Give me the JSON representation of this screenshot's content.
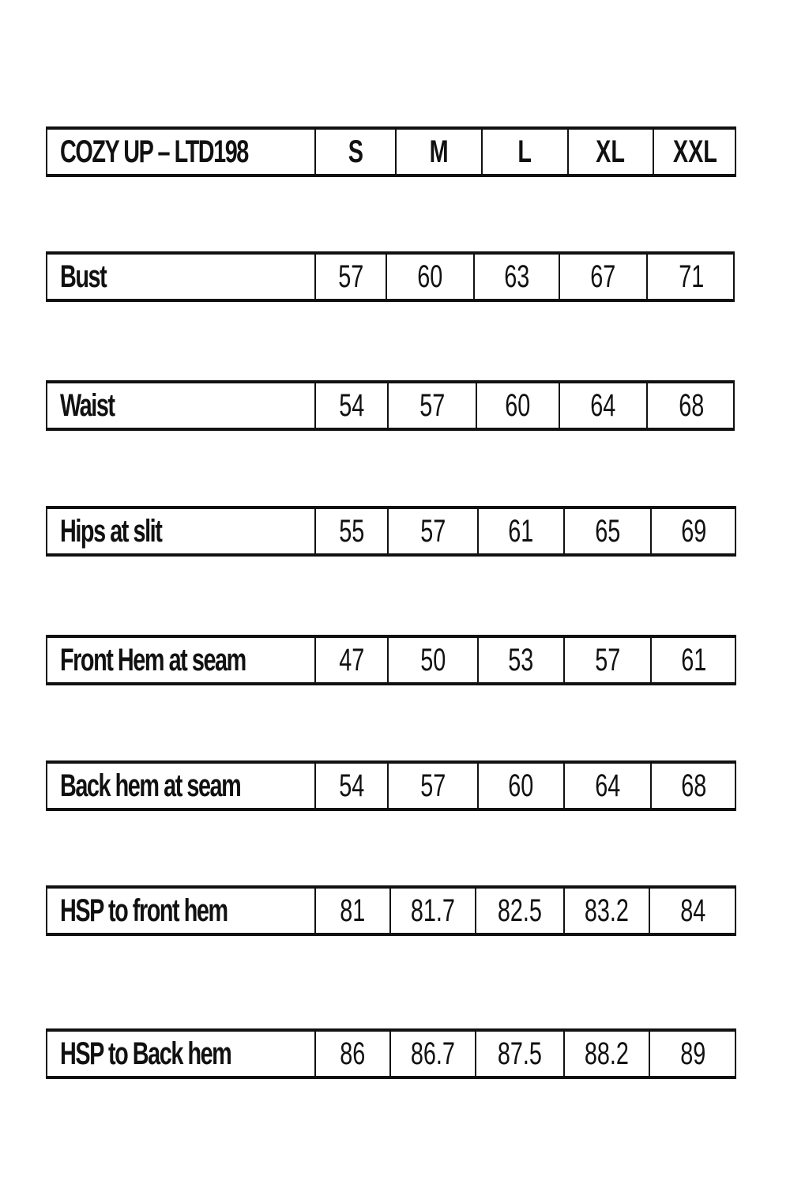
{
  "header": {
    "title": "COZY UP – LTD198",
    "sizes": [
      "S",
      "M",
      "L",
      "XL",
      "XXL"
    ]
  },
  "rows": [
    {
      "label": "Bust",
      "values": [
        "57",
        "60",
        "63",
        "67",
        "71"
      ]
    },
    {
      "label": "Waist",
      "values": [
        "54",
        "57",
        "60",
        "64",
        "68"
      ]
    },
    {
      "label": "Hips at slit",
      "values": [
        "55",
        "57",
        "61",
        "65",
        "69"
      ]
    },
    {
      "label": "Front Hem at seam",
      "values": [
        "47",
        "50",
        "53",
        "57",
        "61"
      ]
    },
    {
      "label": "Back hem at seam",
      "values": [
        "54",
        "57",
        "60",
        "64",
        "68"
      ]
    },
    {
      "label": "HSP to front hem",
      "values": [
        "81",
        "81.7",
        "82.5",
        "83.2",
        "84"
      ]
    },
    {
      "label": "HSP to Back hem",
      "values": [
        "86",
        "86.7",
        "87.5",
        "88.2",
        "89"
      ]
    }
  ]
}
